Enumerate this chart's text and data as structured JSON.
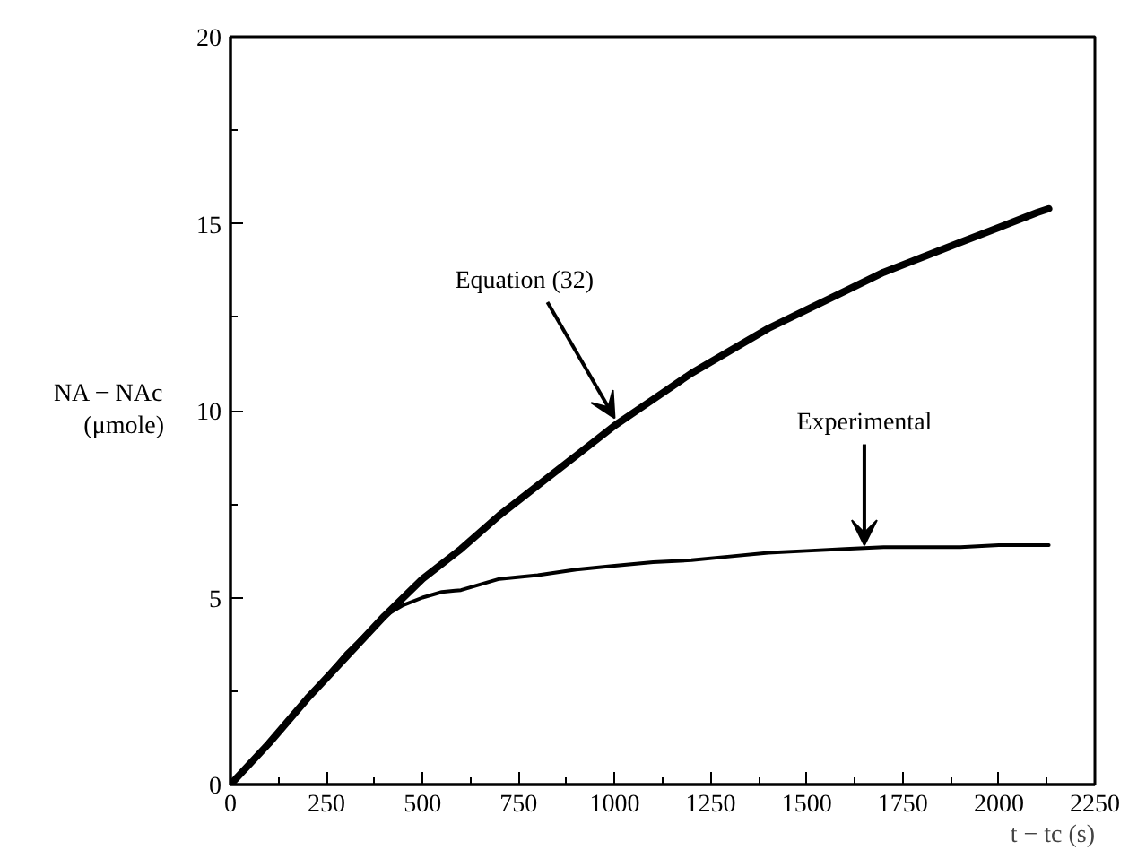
{
  "chart_data": {
    "type": "line",
    "xlabel": "t − tc (s)",
    "ylabel": "NA − NAc\n(μmole)",
    "xlim": [
      0,
      2250
    ],
    "ylim": [
      0,
      20
    ],
    "xticks": [
      0,
      250,
      500,
      750,
      1000,
      1250,
      1500,
      1750,
      2000,
      2250
    ],
    "yticks": [
      0,
      5,
      10,
      15,
      20
    ],
    "grid": false,
    "marker": "none",
    "line_style": "solid",
    "series": [
      {
        "color": "#000000",
        "x": [
          0,
          100,
          200,
          300,
          400,
          500,
          600,
          700,
          800,
          900,
          1000,
          1100,
          1200,
          1300,
          1400,
          1500,
          1600,
          1700,
          1800,
          1900,
          2000,
          2100,
          2130
        ],
        "values": [
          0,
          1.1,
          2.3,
          3.4,
          4.5,
          5.5,
          6.3,
          7.2,
          8.0,
          8.8,
          9.6,
          10.3,
          11.0,
          11.6,
          12.2,
          12.7,
          13.2,
          13.7,
          14.1,
          14.5,
          14.9,
          15.3,
          15.4
        ]
      },
      {
        "color": "#000000",
        "x": [
          0,
          100,
          200,
          300,
          400,
          450,
          500,
          550,
          600,
          650,
          700,
          800,
          900,
          1000,
          1100,
          1200,
          1300,
          1400,
          1500,
          1600,
          1700,
          1800,
          1900,
          2000,
          2130
        ],
        "values": [
          0,
          1.1,
          2.3,
          3.5,
          4.5,
          4.8,
          5.0,
          5.15,
          5.2,
          5.35,
          5.5,
          5.6,
          5.75,
          5.85,
          5.95,
          6.0,
          6.1,
          6.2,
          6.25,
          6.3,
          6.35,
          6.35,
          6.35,
          6.4,
          6.4
        ]
      }
    ],
    "annotations": [
      {
        "text": "Equation (32)",
        "x": 1000,
        "y": 9.7
      },
      {
        "text": "Experimental",
        "x": 1650,
        "y": 6.3
      }
    ]
  }
}
